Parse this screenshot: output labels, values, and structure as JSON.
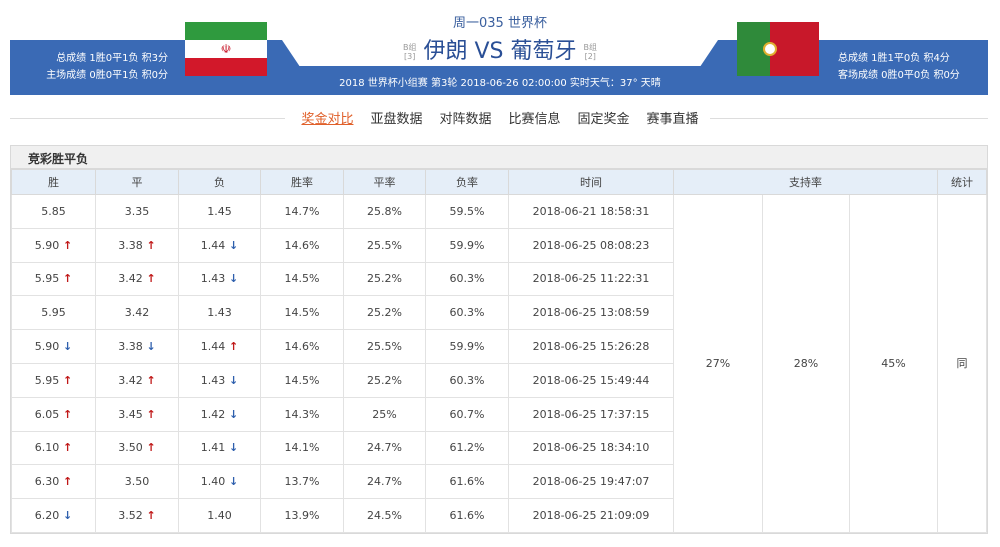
{
  "header": {
    "title": "周一035 世界杯",
    "home": "伊朗",
    "vs": "VS",
    "away": "葡萄牙",
    "home_group": "B组",
    "home_rank": "[3]",
    "away_group": "B组",
    "away_rank": "[2]",
    "info": "2018 世界杯小组赛 第3轮   2018-06-26  02:00:00   实时天气：37° 天晴",
    "home_stats": [
      "总成绩 1胜0平1负 积3分",
      "主场成绩 0胜0平1负 积0分"
    ],
    "away_stats": [
      "总成绩 1胜1平0负 积4分",
      "客场成绩 0胜0平0负 积0分"
    ]
  },
  "tabs": [
    "奖金对比",
    "亚盘数据",
    "对阵数据",
    "比赛信息",
    "固定奖金",
    "赛事直播"
  ],
  "active_tab": 0,
  "section_title": "竞彩胜平负",
  "columns": [
    "胜",
    "平",
    "负",
    "胜率",
    "平率",
    "负率",
    "时间",
    "支持率",
    "统计"
  ],
  "support": [
    "27%",
    "28%",
    "45%"
  ],
  "stat": "同",
  "rows": [
    {
      "w": "5.85",
      "wa": "",
      "d": "3.35",
      "da": "",
      "l": "1.45",
      "la": "",
      "wr": "14.7%",
      "dr": "25.8%",
      "lr": "59.5%",
      "t": "2018-06-21 18:58:31"
    },
    {
      "w": "5.90",
      "wa": "up",
      "d": "3.38",
      "da": "up",
      "l": "1.44",
      "la": "down",
      "wr": "14.6%",
      "dr": "25.5%",
      "lr": "59.9%",
      "t": "2018-06-25 08:08:23"
    },
    {
      "w": "5.95",
      "wa": "up",
      "d": "3.42",
      "da": "up",
      "l": "1.43",
      "la": "down",
      "wr": "14.5%",
      "dr": "25.2%",
      "lr": "60.3%",
      "t": "2018-06-25 11:22:31"
    },
    {
      "w": "5.95",
      "wa": "",
      "d": "3.42",
      "da": "",
      "l": "1.43",
      "la": "",
      "wr": "14.5%",
      "dr": "25.2%",
      "lr": "60.3%",
      "t": "2018-06-25 13:08:59"
    },
    {
      "w": "5.90",
      "wa": "down",
      "d": "3.38",
      "da": "down",
      "l": "1.44",
      "la": "up",
      "wr": "14.6%",
      "dr": "25.5%",
      "lr": "59.9%",
      "t": "2018-06-25 15:26:28"
    },
    {
      "w": "5.95",
      "wa": "up",
      "d": "3.42",
      "da": "up",
      "l": "1.43",
      "la": "down",
      "wr": "14.5%",
      "dr": "25.2%",
      "lr": "60.3%",
      "t": "2018-06-25 15:49:44"
    },
    {
      "w": "6.05",
      "wa": "up",
      "d": "3.45",
      "da": "up",
      "l": "1.42",
      "la": "down",
      "wr": "14.3%",
      "dr": "25%",
      "lr": "60.7%",
      "t": "2018-06-25 17:37:15"
    },
    {
      "w": "6.10",
      "wa": "up",
      "d": "3.50",
      "da": "up",
      "l": "1.41",
      "la": "down",
      "wr": "14.1%",
      "dr": "24.7%",
      "lr": "61.2%",
      "t": "2018-06-25 18:34:10"
    },
    {
      "w": "6.30",
      "wa": "up",
      "d": "3.50",
      "da": "",
      "l": "1.40",
      "la": "down",
      "wr": "13.7%",
      "dr": "24.7%",
      "lr": "61.6%",
      "t": "2018-06-25 19:47:07"
    },
    {
      "w": "6.20",
      "wa": "down",
      "d": "3.52",
      "da": "up",
      "l": "1.40",
      "la": "",
      "wr": "13.9%",
      "dr": "24.5%",
      "lr": "61.6%",
      "t": "2018-06-25 21:09:09"
    }
  ],
  "colors": {
    "banner": "#3a6ab5",
    "up": "#c01818",
    "down": "#2e5fad",
    "active_tab": "#e0602a"
  }
}
